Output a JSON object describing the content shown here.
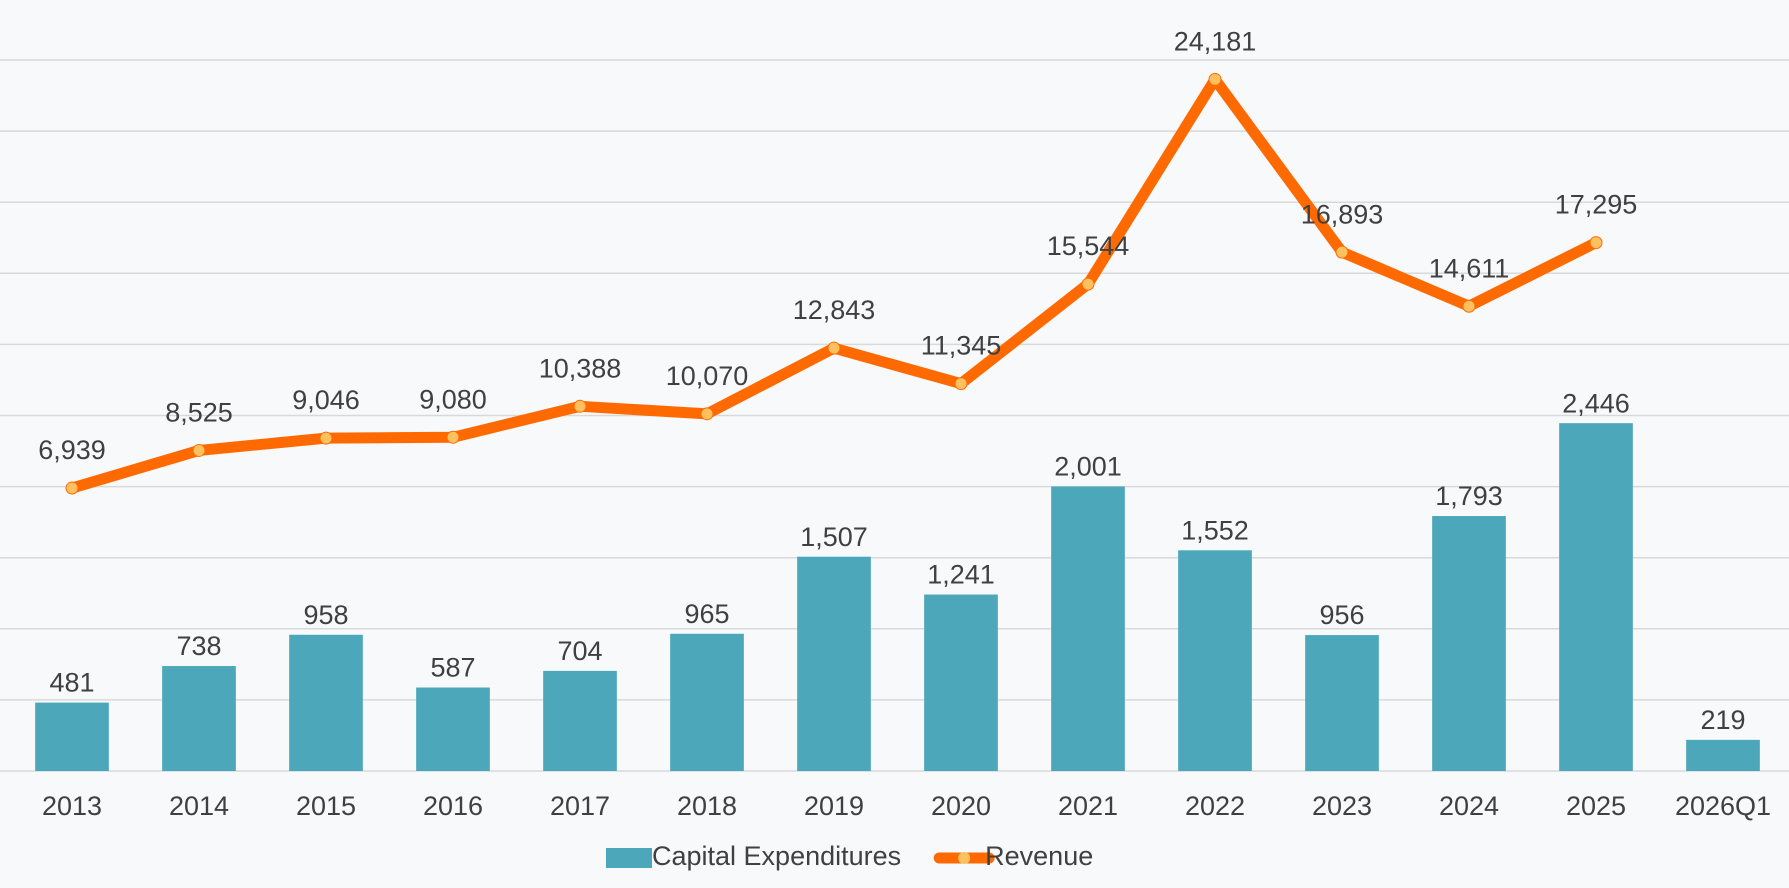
{
  "chart_data": {
    "type": "bar_line",
    "categories": [
      "2013",
      "2014",
      "2015",
      "2016",
      "2017",
      "2018",
      "2019",
      "2020",
      "2021",
      "2022",
      "2023",
      "2024",
      "2025",
      "2026Q1"
    ],
    "series": [
      {
        "name": "Capital Expenditures",
        "type": "bar",
        "color": "#4ba7b9",
        "values": [
          481,
          738,
          958,
          587,
          704,
          965,
          1507,
          1241,
          2001,
          1552,
          956,
          1793,
          2446,
          219
        ],
        "value_labels": [
          "481",
          "738",
          "958",
          "587",
          "704",
          "965",
          "1,507",
          "1,241",
          "2,001",
          "1,552",
          "956",
          "1,793",
          "2,446",
          "219"
        ]
      },
      {
        "name": "Revenue",
        "type": "line",
        "axis": "y2",
        "color": "#ff6a00",
        "marker_color": "#ffc060",
        "values": [
          6939,
          8525,
          9046,
          9080,
          10388,
          10070,
          12843,
          11345,
          15544,
          24181,
          16893,
          14611,
          17295,
          null
        ],
        "value_labels": [
          "6,939",
          "8,525",
          "9,046",
          "9,080",
          "10,388",
          "10,070",
          "12,843",
          "11,345",
          "15,544",
          "24,181",
          "16,893",
          "14,611",
          "17,295",
          null
        ]
      }
    ],
    "ylim": [
      0,
      5000
    ],
    "yticks": [
      0,
      500,
      1000,
      1500,
      2000,
      2500,
      3000,
      3500,
      4000,
      4500,
      5000
    ],
    "y2lim": [
      -5000,
      25000
    ],
    "grid": true
  }
}
